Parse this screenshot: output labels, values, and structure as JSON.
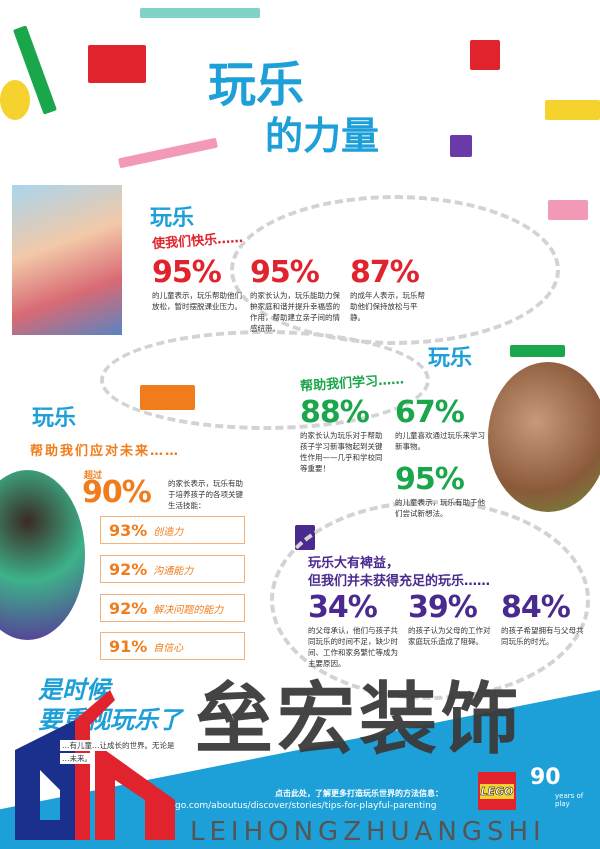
{
  "title": {
    "line1": "玩乐",
    "line2": "的力量"
  },
  "colors": {
    "blue": "#1d9fd8",
    "red": "#e0232d",
    "green": "#1aa64a",
    "orange": "#f07c1c",
    "purple": "#4a2a8e"
  },
  "section_happy": {
    "heading": "玩乐",
    "sub": "使我们快乐……",
    "stats": [
      {
        "value": "95%",
        "text": "的儿童表示，玩乐帮助他们放松，暂时摆脱课业压力。"
      },
      {
        "value": "95%",
        "text": "的家长认为，玩乐能助力保护家庭和谐并提升幸福感的作用，帮助建立亲子间的情感纽带。"
      },
      {
        "value": "87%",
        "text": "的成年人表示，玩乐帮助他们保持放松与平静。"
      }
    ]
  },
  "section_learn": {
    "heading": "玩乐",
    "sub": "帮助我们学习……",
    "stats": [
      {
        "value": "88%",
        "text": "的家长认为玩乐对于帮助孩子学习新事物起到关键性作用——几乎和学校同等重要！"
      },
      {
        "value": "67%",
        "text": "的儿童喜欢通过玩乐来学习新事物。"
      },
      {
        "value": "95%",
        "text": "的儿童表示，玩乐有助于他们尝试新想法。"
      }
    ]
  },
  "section_future": {
    "heading": "玩乐",
    "sub": "帮助我们应对未来……",
    "over": "超过",
    "value": "90%",
    "text": "的家长表示，玩乐有助于培养孩子的各项关键生活技能：",
    "skills": [
      {
        "value": "93%",
        "label": "创造力"
      },
      {
        "value": "92%",
        "label": "沟通能力"
      },
      {
        "value": "92%",
        "label": "解决问题的能力"
      },
      {
        "value": "91%",
        "label": "自信心"
      }
    ]
  },
  "section_gap": {
    "heading1": "玩乐大有裨益，",
    "heading2": "但我们并未获得充足的玩乐……",
    "stats": [
      {
        "value": "34%",
        "text": "的父母承认，他们与孩子共同玩乐的时间不足，缺少时间、工作和家务繁忙等成为主要原因。"
      },
      {
        "value": "39%",
        "text": "的孩子认为父母的工作对家庭玩乐造成了阻碍。"
      },
      {
        "value": "84%",
        "text": "的孩子希望拥有与父母共同玩乐的时光。"
      }
    ]
  },
  "closing": {
    "line1": "是时候",
    "line2": "要重视玩乐了",
    "text1": "…有儿童…让成长的世界。无论是",
    "text2": "…未来。"
  },
  "footer": {
    "cta": "点击此处，了解更多打造玩乐世界的方法信息：",
    "url": "go.com/aboutus/discover/stories/tips-for-playful-parenting",
    "logo": "LEGO",
    "anniversary_num": "90",
    "anniversary_text": "years of play"
  },
  "watermark": {
    "cn": "垒宏装饰",
    "en": "LEIHONGZHUANGSHI"
  }
}
